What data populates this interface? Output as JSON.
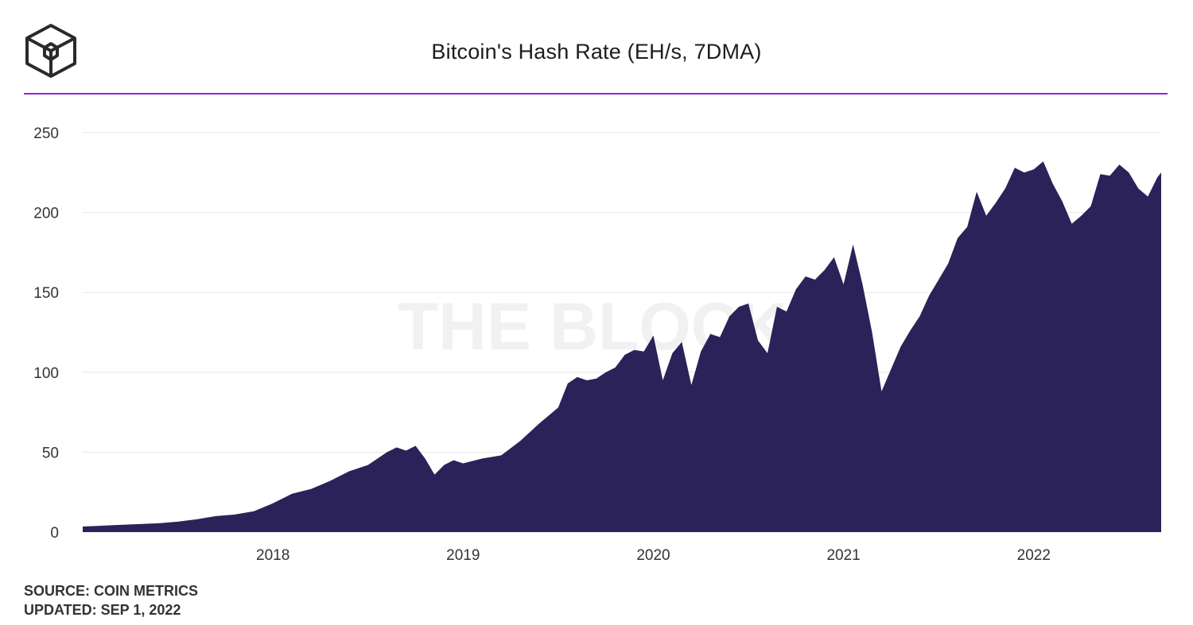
{
  "brand": {
    "watermark": "THE BLOCK",
    "logo_icon": "cube-logo-icon"
  },
  "colors": {
    "accent": "#8e24d8",
    "area": "#2b2259",
    "grid": "#e6e6e6",
    "axis_text": "#333333"
  },
  "footer": {
    "source": "SOURCE: COIN METRICS",
    "updated": "UPDATED: SEP 1, 2022"
  },
  "chart_data": {
    "type": "area",
    "title": "Bitcoin's Hash Rate (EH/s, 7DMA)",
    "xlabel": "",
    "ylabel": "",
    "xlim": [
      2017.0,
      2022.67
    ],
    "ylim": [
      0,
      250
    ],
    "yticks": [
      0,
      50,
      100,
      150,
      200,
      250
    ],
    "xticks": [
      2018,
      2019,
      2020,
      2021,
      2022
    ],
    "xtick_labels": [
      "2018",
      "2019",
      "2020",
      "2021",
      "2022"
    ],
    "grid": true,
    "legend": "none",
    "x": [
      2017.0,
      2017.2,
      2017.4,
      2017.5,
      2017.6,
      2017.7,
      2017.8,
      2017.9,
      2018.0,
      2018.1,
      2018.2,
      2018.3,
      2018.4,
      2018.5,
      2018.6,
      2018.65,
      2018.7,
      2018.75,
      2018.8,
      2018.85,
      2018.9,
      2018.95,
      2019.0,
      2019.1,
      2019.2,
      2019.3,
      2019.4,
      2019.5,
      2019.55,
      2019.6,
      2019.65,
      2019.7,
      2019.75,
      2019.8,
      2019.85,
      2019.9,
      2019.95,
      2020.0,
      2020.05,
      2020.1,
      2020.15,
      2020.2,
      2020.25,
      2020.3,
      2020.35,
      2020.4,
      2020.45,
      2020.5,
      2020.55,
      2020.6,
      2020.65,
      2020.7,
      2020.75,
      2020.8,
      2020.85,
      2020.9,
      2020.95,
      2021.0,
      2021.05,
      2021.1,
      2021.15,
      2021.2,
      2021.25,
      2021.3,
      2021.35,
      2021.4,
      2021.45,
      2021.5,
      2021.55,
      2021.6,
      2021.65,
      2021.7,
      2021.75,
      2021.8,
      2021.85,
      2021.9,
      2021.95,
      2022.0,
      2022.05,
      2022.1,
      2022.15,
      2022.2,
      2022.25,
      2022.3,
      2022.35,
      2022.4,
      2022.45,
      2022.5,
      2022.55,
      2022.6,
      2022.65,
      2022.67
    ],
    "values": [
      3.5,
      4.5,
      5.5,
      6.5,
      8,
      10,
      11,
      13,
      18,
      24,
      27,
      32,
      38,
      42,
      50,
      53,
      51,
      54,
      46,
      36,
      42,
      45,
      43,
      46,
      48,
      57,
      68,
      78,
      93,
      97,
      95,
      96,
      100,
      103,
      111,
      114,
      113,
      123,
      95,
      112,
      119,
      92,
      113,
      124,
      122,
      135,
      141,
      143,
      120,
      112,
      141,
      138,
      152,
      160,
      158,
      164,
      172,
      155,
      180,
      155,
      125,
      88,
      102,
      116,
      126,
      135,
      148,
      158,
      168,
      184,
      191,
      213,
      198,
      206,
      215,
      228,
      225,
      227,
      232,
      218,
      207,
      193,
      198,
      204,
      224,
      223,
      230,
      225,
      215,
      210,
      222,
      225
    ]
  }
}
